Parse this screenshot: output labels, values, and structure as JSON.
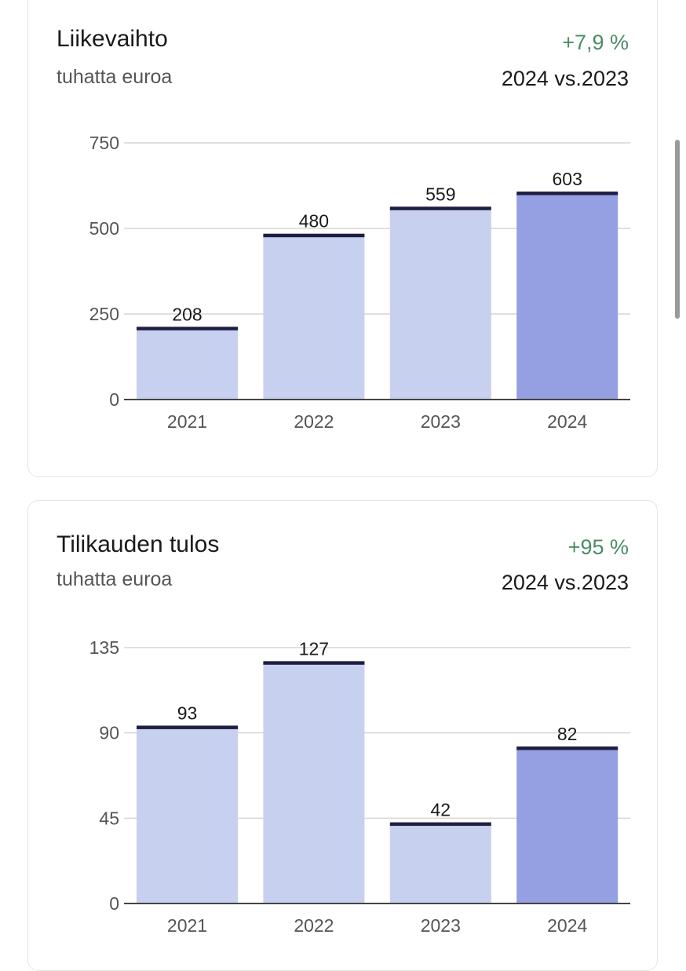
{
  "cards": [
    {
      "title": "Liikevaihto",
      "subtitle": "tuhatta euroa",
      "change": "+7,9 %",
      "comparison": "2024 vs.2023"
    },
    {
      "title": "Tilikauden tulos",
      "subtitle": "tuhatta euroa",
      "change": "+95 %",
      "comparison": "2024 vs.2023"
    }
  ],
  "colors": {
    "bar_past": "#c8d0f0",
    "bar_current": "#94a0e2",
    "bar_cap": "#1e1e42",
    "change_positive": "#4a8c67"
  },
  "chart_data": [
    {
      "type": "bar",
      "title": "Liikevaihto",
      "ylabel": "tuhatta euroa",
      "categories": [
        "2021",
        "2022",
        "2023",
        "2024"
      ],
      "values": [
        208,
        480,
        559,
        603
      ],
      "ylim": [
        0,
        750
      ],
      "yticks": [
        0,
        250,
        500,
        750
      ],
      "highlight_category": "2024",
      "grid": true
    },
    {
      "type": "bar",
      "title": "Tilikauden tulos",
      "ylabel": "tuhatta euroa",
      "categories": [
        "2021",
        "2022",
        "2023",
        "2024"
      ],
      "values": [
        93,
        127,
        42,
        82
      ],
      "ylim": [
        0,
        135
      ],
      "yticks": [
        0,
        45,
        90,
        135
      ],
      "highlight_category": "2024",
      "grid": true
    }
  ]
}
